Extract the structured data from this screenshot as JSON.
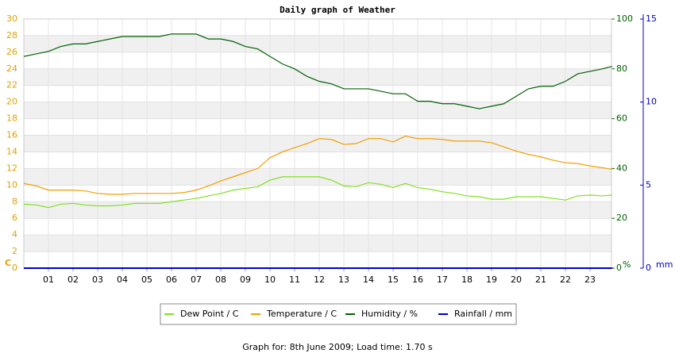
{
  "chart_data": {
    "type": "line",
    "title": "Daily graph of Weather",
    "footer": "Graph for: 8th June 2009; Load time: 1.70 s",
    "y_unit": "C",
    "y2_unit": "%",
    "y3_unit": "mm",
    "xlim": [
      0,
      24
    ],
    "xticks": [
      {
        "value": 1,
        "label": "01"
      },
      {
        "value": 2,
        "label": "02"
      },
      {
        "value": 3,
        "label": "03"
      },
      {
        "value": 4,
        "label": "04"
      },
      {
        "value": 5,
        "label": "05"
      },
      {
        "value": 6,
        "label": "06"
      },
      {
        "value": 7,
        "label": "07"
      },
      {
        "value": 8,
        "label": "08"
      },
      {
        "value": 9,
        "label": "09"
      },
      10,
      11,
      12,
      13,
      14,
      15,
      16,
      17,
      18,
      19,
      20,
      21,
      22,
      23
    ],
    "ylim": [
      0,
      30
    ],
    "yticks": [
      0,
      2,
      4,
      6,
      8,
      10,
      12,
      14,
      16,
      18,
      20,
      22,
      24,
      26,
      28,
      30
    ],
    "y2lim": [
      0,
      100
    ],
    "y2ticks": [
      0,
      20,
      40,
      60,
      80,
      100
    ],
    "y3lim": [
      0,
      15
    ],
    "y3ticks": [
      0,
      5,
      10,
      15
    ],
    "grid": true,
    "x": [
      0,
      0.5,
      1,
      1.5,
      2,
      2.5,
      3,
      3.5,
      4,
      4.5,
      5,
      5.5,
      6,
      6.5,
      7,
      7.5,
      8,
      8.5,
      9,
      9.5,
      10,
      10.5,
      11,
      11.5,
      12,
      12.5,
      13,
      13.5,
      14,
      14.5,
      15,
      15.5,
      16,
      16.5,
      17,
      17.5,
      18,
      18.5,
      19,
      19.5,
      20,
      20.5,
      21,
      21.5,
      22,
      22.5,
      23,
      23.5,
      23.9
    ],
    "series": [
      {
        "name": "Dew Point / C",
        "color": "#80e020",
        "axis": "y",
        "values": [
          7.7,
          7.6,
          7.3,
          7.7,
          7.8,
          7.6,
          7.5,
          7.5,
          7.6,
          7.8,
          7.8,
          7.8,
          8.0,
          8.2,
          8.4,
          8.7,
          9.0,
          9.4,
          9.6,
          9.8,
          10.6,
          11.0,
          11.0,
          11.0,
          11.0,
          10.6,
          9.9,
          9.8,
          10.3,
          10.1,
          9.7,
          10.2,
          9.7,
          9.5,
          9.2,
          9.0,
          8.7,
          8.6,
          8.3,
          8.3,
          8.6,
          8.6,
          8.6,
          8.4,
          8.2,
          8.7,
          8.8,
          8.7,
          8.8
        ]
      },
      {
        "name": "Temperature / C",
        "color": "#f0a000",
        "axis": "y",
        "values": [
          10.2,
          9.9,
          9.4,
          9.4,
          9.4,
          9.3,
          9.0,
          8.9,
          8.9,
          9.0,
          9.0,
          9.0,
          9.0,
          9.1,
          9.4,
          9.9,
          10.5,
          11.0,
          11.5,
          12.0,
          13.3,
          14.0,
          14.5,
          15.0,
          15.6,
          15.5,
          14.9,
          15.0,
          15.6,
          15.6,
          15.2,
          15.9,
          15.6,
          15.6,
          15.5,
          15.3,
          15.3,
          15.3,
          15.1,
          14.6,
          14.1,
          13.7,
          13.4,
          13.0,
          12.7,
          12.6,
          12.3,
          12.1,
          11.9
        ]
      },
      {
        "name": "Humidity / %",
        "color": "#006000",
        "axis": "y2",
        "values": [
          85,
          86,
          87,
          89,
          90,
          90,
          91,
          92,
          93,
          93,
          93,
          93,
          94,
          94,
          94,
          92,
          92,
          91,
          89,
          88,
          85,
          82,
          80,
          77,
          75,
          74,
          72,
          72,
          72,
          71,
          70,
          70,
          67,
          67,
          66,
          66,
          65,
          64,
          65,
          66,
          69,
          72,
          73,
          73,
          75,
          78,
          79,
          80,
          81
        ]
      },
      {
        "name": "Rainfall / mm",
        "color": "#0000c0",
        "axis": "y3",
        "values": [
          0,
          0,
          0,
          0,
          0,
          0,
          0,
          0,
          0,
          0,
          0,
          0,
          0,
          0,
          0,
          0,
          0,
          0,
          0,
          0,
          0,
          0,
          0,
          0,
          0,
          0,
          0,
          0,
          0,
          0,
          0,
          0,
          0,
          0,
          0,
          0,
          0,
          0,
          0,
          0,
          0,
          0,
          0,
          0,
          0,
          0,
          0,
          0,
          0
        ]
      }
    ]
  }
}
